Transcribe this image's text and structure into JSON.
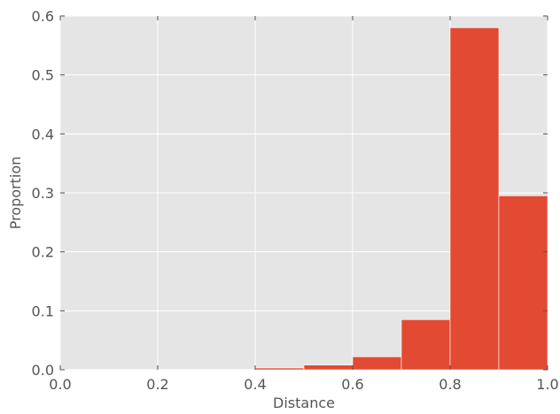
{
  "chart_data": {
    "type": "bar",
    "title": "",
    "xlabel": "Distance",
    "ylabel": "Proportion",
    "xlim": [
      0.0,
      1.0
    ],
    "ylim": [
      0.0,
      0.6
    ],
    "grid": true,
    "legend": "none",
    "bins": [
      {
        "x0": 0.0,
        "x1": 0.1,
        "value": 0.0005
      },
      {
        "x0": 0.1,
        "x1": 0.2,
        "value": 0.0005
      },
      {
        "x0": 0.2,
        "x1": 0.3,
        "value": 0.0006
      },
      {
        "x0": 0.3,
        "x1": 0.4,
        "value": 0.0006
      },
      {
        "x0": 0.4,
        "x1": 0.5,
        "value": 0.003
      },
      {
        "x0": 0.5,
        "x1": 0.6,
        "value": 0.008
      },
      {
        "x0": 0.6,
        "x1": 0.7,
        "value": 0.022
      },
      {
        "x0": 0.7,
        "x1": 0.8,
        "value": 0.085
      },
      {
        "x0": 0.8,
        "x1": 0.9,
        "value": 0.58
      },
      {
        "x0": 0.9,
        "x1": 1.0,
        "value": 0.295
      }
    ],
    "x_ticks": [
      {
        "value": 0.0,
        "label": "0.0"
      },
      {
        "value": 0.2,
        "label": "0.2"
      },
      {
        "value": 0.4,
        "label": "0.4"
      },
      {
        "value": 0.6,
        "label": "0.6"
      },
      {
        "value": 0.8,
        "label": "0.8"
      },
      {
        "value": 1.0,
        "label": "1.0"
      }
    ],
    "y_ticks": [
      {
        "value": 0.0,
        "label": "0.0"
      },
      {
        "value": 0.1,
        "label": "0.1"
      },
      {
        "value": 0.2,
        "label": "0.2"
      },
      {
        "value": 0.3,
        "label": "0.3"
      },
      {
        "value": 0.4,
        "label": "0.4"
      },
      {
        "value": 0.5,
        "label": "0.5"
      },
      {
        "value": 0.6,
        "label": "0.6"
      }
    ],
    "colors": {
      "bar": "#E24A33",
      "background": "#E5E5E5",
      "grid": "#FFFFFF",
      "text": "#555555"
    }
  }
}
